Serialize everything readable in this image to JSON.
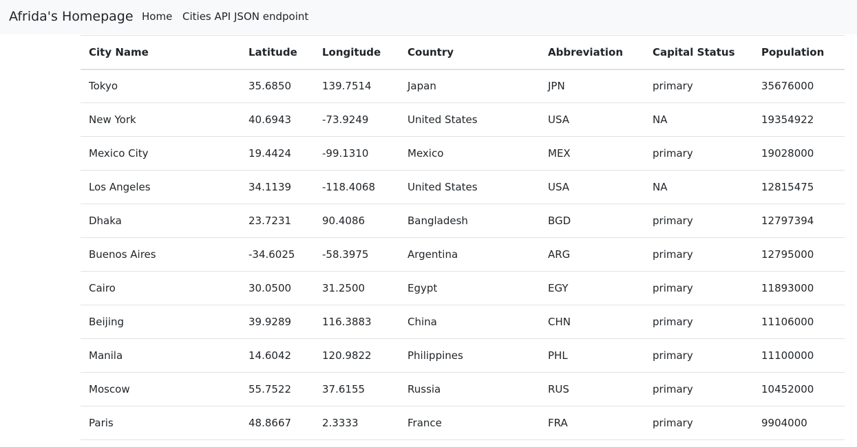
{
  "navbar": {
    "brand": "Afrida's Homepage",
    "links": [
      "Home",
      "Cities API JSON endpoint"
    ]
  },
  "table": {
    "headers": [
      "City Name",
      "Latitude",
      "Longitude",
      "Country",
      "Abbreviation",
      "Capital Status",
      "Population"
    ],
    "rows": [
      [
        "Tokyo",
        "35.6850",
        "139.7514",
        "Japan",
        "JPN",
        "primary",
        "35676000"
      ],
      [
        "New York",
        "40.6943",
        "-73.9249",
        "United States",
        "USA",
        "NA",
        "19354922"
      ],
      [
        "Mexico City",
        "19.4424",
        "-99.1310",
        "Mexico",
        "MEX",
        "primary",
        "19028000"
      ],
      [
        "Los Angeles",
        "34.1139",
        "-118.4068",
        "United States",
        "USA",
        "NA",
        "12815475"
      ],
      [
        "Dhaka",
        "23.7231",
        "90.4086",
        "Bangladesh",
        "BGD",
        "primary",
        "12797394"
      ],
      [
        "Buenos Aires",
        "-34.6025",
        "-58.3975",
        "Argentina",
        "ARG",
        "primary",
        "12795000"
      ],
      [
        "Cairo",
        "30.0500",
        "31.2500",
        "Egypt",
        "EGY",
        "primary",
        "11893000"
      ],
      [
        "Beijing",
        "39.9289",
        "116.3883",
        "China",
        "CHN",
        "primary",
        "11106000"
      ],
      [
        "Manila",
        "14.6042",
        "120.9822",
        "Philippines",
        "PHL",
        "primary",
        "11100000"
      ],
      [
        "Moscow",
        "55.7522",
        "37.6155",
        "Russia",
        "RUS",
        "primary",
        "10452000"
      ],
      [
        "Paris",
        "48.8667",
        "2.3333",
        "France",
        "FRA",
        "primary",
        "9904000"
      ]
    ]
  }
}
